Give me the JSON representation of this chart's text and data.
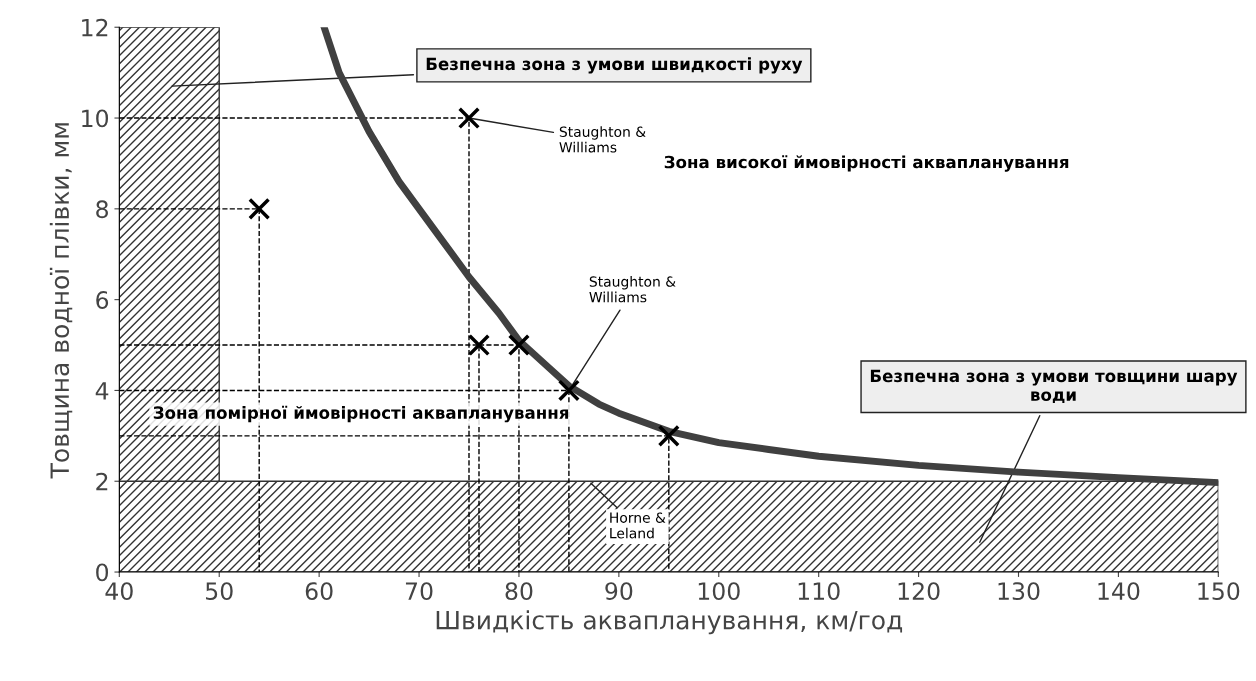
{
  "chart_data": {
    "type": "scatter",
    "xlabel": "Швидкість аквапланування, км/год",
    "ylabel": "Товщина водної плівки, мм",
    "xlim": [
      40,
      150
    ],
    "xticks": [
      40,
      50,
      60,
      70,
      80,
      90,
      100,
      110,
      120,
      130,
      140,
      150
    ],
    "ylim": [
      0,
      12
    ],
    "yticks": [
      0,
      2,
      4,
      6,
      8,
      10,
      12
    ],
    "grid": false,
    "series": [
      {
        "type": "line",
        "color": "#404040",
        "line_style": "solid",
        "marker": "none",
        "x": [
          60.5,
          62,
          65,
          68,
          70,
          72,
          75,
          78,
          80,
          83,
          85,
          88,
          90,
          95,
          100,
          105,
          110,
          120,
          130,
          140,
          150
        ],
        "values": [
          12,
          11,
          9.7,
          8.6,
          8,
          7.4,
          6.5,
          5.7,
          5.1,
          4.5,
          4.1,
          3.7,
          3.5,
          3.1,
          2.85,
          2.7,
          2.55,
          2.35,
          2.2,
          2.08,
          1.97
        ]
      },
      {
        "color": "#000000",
        "marker": "cross",
        "x": [
          54,
          75,
          76,
          80,
          85,
          95
        ],
        "values": [
          8,
          10,
          5,
          5,
          4,
          3
        ]
      },
      {
        "type": "line",
        "color": "#000000",
        "line_style": "dashed",
        "marker": "none",
        "x": [
          40,
          54,
          54
        ],
        "values": [
          8,
          8,
          0
        ]
      },
      {
        "type": "line",
        "color": "#000000",
        "line_style": "dashed",
        "marker": "none",
        "x": [
          40,
          75,
          75
        ],
        "values": [
          10,
          10,
          0
        ]
      },
      {
        "type": "line",
        "color": "#000000",
        "line_style": "dashed",
        "marker": "none",
        "x": [
          40,
          76,
          76
        ],
        "values": [
          5,
          5,
          0
        ]
      },
      {
        "type": "line",
        "color": "#000000",
        "line_style": "dashed",
        "marker": "none",
        "x": [
          76,
          80,
          80
        ],
        "values": [
          5,
          5,
          0
        ]
      },
      {
        "type": "line",
        "color": "#000000",
        "line_style": "dashed",
        "marker": "none",
        "x": [
          40,
          85,
          85
        ],
        "values": [
          4,
          4,
          0
        ]
      },
      {
        "type": "line",
        "color": "#000000",
        "line_style": "dashed",
        "marker": "none",
        "x": [
          40,
          95,
          95
        ],
        "values": [
          3,
          3,
          0
        ]
      }
    ],
    "bands": [
      {
        "axis": "x",
        "from": 40,
        "to": 50,
        "label": "Безпечна зона з умови швидкості руху"
      },
      {
        "axis": "y",
        "from": 0,
        "to": 2,
        "label": "Безпечна зона з умови товщини шару води"
      }
    ],
    "annotations": [
      "Зона високої ймовірності аквапланування",
      "Зона помірної ймовірності аквапланування",
      {
        "text": "Staughton & Williams",
        "x": 75,
        "y": 10
      },
      {
        "text": "Staughton & Williams",
        "x": 85,
        "y": 4
      },
      {
        "text": "Horne & Leland",
        "x": 87,
        "y": 2
      }
    ]
  }
}
